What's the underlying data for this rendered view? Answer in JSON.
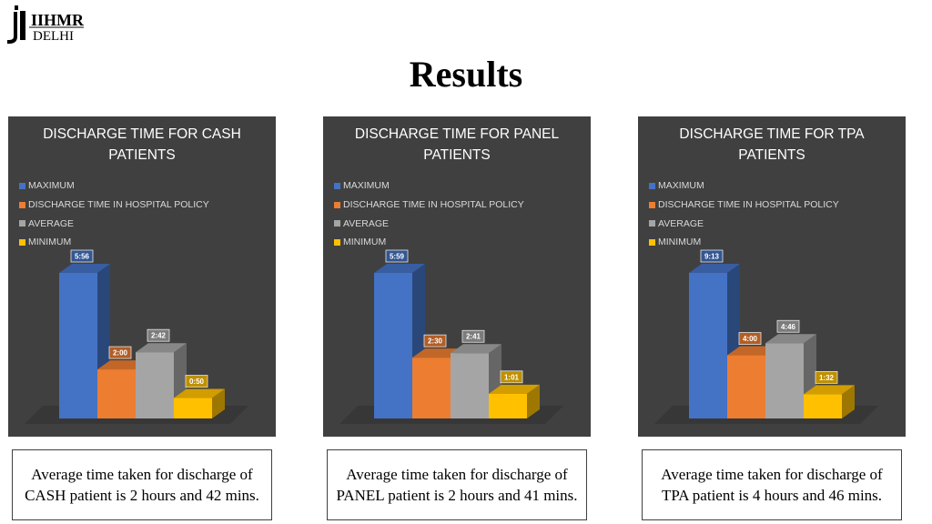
{
  "logo": {
    "line1": "IIHMR",
    "line2": "DELHI"
  },
  "page_title": "Results",
  "colors": {
    "maximum": "#4472C4",
    "policy": "#ED7D31",
    "average": "#A5A5A5",
    "minimum": "#FFC000",
    "panel": "#404040"
  },
  "chart_data": [
    {
      "type": "bar",
      "title": "DISCHARGE TIME FOR CASH PATIENTS",
      "legend": [
        "MAXIMUM",
        "DISCHARGE TIME IN HOSPITAL POLICY",
        "AVERAGE",
        "MINIMUM"
      ],
      "legend_position": "top-left",
      "series": [
        {
          "name": "MAXIMUM",
          "value": 356,
          "label": "5:56"
        },
        {
          "name": "DISCHARGE TIME IN HOSPITAL POLICY",
          "value": 120,
          "label": "2:00"
        },
        {
          "name": "AVERAGE",
          "value": 162,
          "label": "2:42"
        },
        {
          "name": "MINIMUM",
          "value": 50,
          "label": "0:50"
        }
      ],
      "grid": false
    },
    {
      "type": "bar",
      "title": "DISCHARGE TIME FOR PANEL PATIENTS",
      "legend": [
        "MAXIMUM",
        "DISCHARGE TIME IN HOSPITAL POLICY",
        "AVERAGE",
        "MINIMUM"
      ],
      "legend_position": "top-left",
      "series": [
        {
          "name": "MAXIMUM",
          "value": 359,
          "label": "5:59"
        },
        {
          "name": "DISCHARGE TIME IN HOSPITAL POLICY",
          "value": 150,
          "label": "2:30"
        },
        {
          "name": "AVERAGE",
          "value": 161,
          "label": "2:41"
        },
        {
          "name": "MINIMUM",
          "value": 61,
          "label": "1:01"
        }
      ],
      "grid": false
    },
    {
      "type": "bar",
      "title": "DISCHARGE TIME FOR TPA PATIENTS",
      "legend": [
        "MAXIMUM",
        "DISCHARGE TIME IN HOSPITAL POLICY",
        "AVERAGE",
        "MINIMUM"
      ],
      "legend_position": "top-left",
      "series": [
        {
          "name": "MAXIMUM",
          "value": 553,
          "label": "9:13"
        },
        {
          "name": "DISCHARGE TIME IN HOSPITAL POLICY",
          "value": 240,
          "label": "4:00"
        },
        {
          "name": "AVERAGE",
          "value": 286,
          "label": "4:46"
        },
        {
          "name": "MINIMUM",
          "value": 92,
          "label": "1:32"
        }
      ],
      "grid": false
    }
  ],
  "captions": [
    "Average time taken for discharge of CASH patient is 2 hours and 42 mins.",
    "Average time taken for discharge of PANEL patient is 2 hours and 41 mins.",
    "Average time taken for discharge of TPA patient is 4 hours and 46 mins."
  ]
}
